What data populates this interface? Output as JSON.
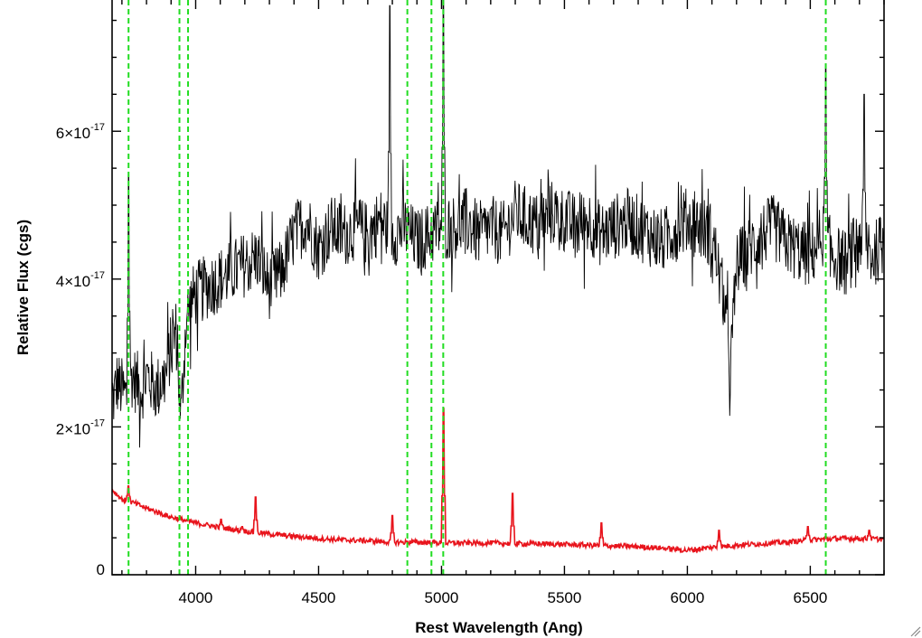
{
  "chart_data": {
    "type": "line",
    "xlabel": "Rest Wavelength (Ang)",
    "ylabel": "Relative Flux (cgs)",
    "xlim": [
      3660,
      6800
    ],
    "ylim": [
      0,
      7.8e-17
    ],
    "x_ticks": [
      {
        "value": 4000,
        "label": "4000"
      },
      {
        "value": 4500,
        "label": "4500"
      },
      {
        "value": 5000,
        "label": "5000"
      },
      {
        "value": 5500,
        "label": "5500"
      },
      {
        "value": 6000,
        "label": "6000"
      },
      {
        "value": 6500,
        "label": "6500"
      }
    ],
    "y_ticks": [
      {
        "value": 0,
        "mantissa": "0",
        "exponent": ""
      },
      {
        "value": 2e-17,
        "mantissa": "2×10",
        "exponent": "-17"
      },
      {
        "value": 4e-17,
        "mantissa": "4×10",
        "exponent": "-17"
      },
      {
        "value": 6e-17,
        "mantissa": "6×10",
        "exponent": "-17"
      }
    ],
    "grid": false,
    "colors": {
      "spectrum": "#000000",
      "model": "#e8141c",
      "lines": "#22dd22"
    },
    "reference_lines_x": [
      3727,
      3934,
      3969,
      4861,
      4959,
      5007,
      6563
    ],
    "series": [
      {
        "color": "#000000",
        "x": [
          3660,
          3680,
          3700,
          3720,
          3740,
          3760,
          3780,
          3800,
          3820,
          3840,
          3860,
          3880,
          3900,
          3920,
          3940,
          3960,
          3980,
          4000,
          4050,
          4100,
          4150,
          4200,
          4250,
          4300,
          4350,
          4400,
          4450,
          4500,
          4550,
          4600,
          4650,
          4700,
          4750,
          4800,
          4850,
          4900,
          4950,
          5000,
          5050,
          5100,
          5150,
          5200,
          5250,
          5300,
          5350,
          5400,
          5450,
          5500,
          5550,
          5600,
          5650,
          5700,
          5750,
          5800,
          5850,
          5900,
          5950,
          6000,
          6050,
          6100,
          6150,
          6175,
          6200,
          6250,
          6300,
          6350,
          6400,
          6450,
          6500,
          6550,
          6600,
          6650,
          6700,
          6750,
          6800
        ],
        "y": [
          2.3e-17,
          2.6e-17,
          2.5e-17,
          2.4e-17,
          2.7e-17,
          2.6e-17,
          2.5e-17,
          2.7e-17,
          2.6e-17,
          2.5e-17,
          2.6e-17,
          2.7e-17,
          3.1e-17,
          3.3e-17,
          2.1e-17,
          3.4e-17,
          3.7e-17,
          3.8e-17,
          3.9e-17,
          4e-17,
          4.1e-17,
          4.2e-17,
          4.3e-17,
          3.9e-17,
          4.1e-17,
          4.6e-17,
          4.8e-17,
          4.4e-17,
          4.7e-17,
          4.6e-17,
          4.7e-17,
          4.6e-17,
          4.8e-17,
          4.6e-17,
          4.7e-17,
          4.5e-17,
          4.6e-17,
          4.7e-17,
          4.7e-17,
          4.8e-17,
          4.6e-17,
          4.7e-17,
          4.6e-17,
          4.9e-17,
          4.8e-17,
          4.7e-17,
          4.9e-17,
          4.8e-17,
          4.7e-17,
          4.8e-17,
          4.6e-17,
          4.7e-17,
          4.8e-17,
          4.7e-17,
          4.6e-17,
          4.5e-17,
          4.7e-17,
          4.8e-17,
          4.7e-17,
          4.6e-17,
          3.7e-17,
          2.8e-17,
          4.2e-17,
          4.4e-17,
          4.6e-17,
          4.7e-17,
          4.5e-17,
          4.4e-17,
          4.3e-17,
          4.6e-17,
          4.3e-17,
          4.2e-17,
          4.6e-17,
          4.3e-17,
          4.5e-17
        ]
      },
      {
        "color": "#e8141c",
        "x": [
          3660,
          3700,
          3750,
          3800,
          3850,
          3900,
          3950,
          4000,
          4100,
          4200,
          4300,
          4400,
          4500,
          4600,
          4700,
          4800,
          4900,
          5000,
          5100,
          5200,
          5300,
          5400,
          5500,
          5600,
          5700,
          5800,
          5900,
          6000,
          6100,
          6200,
          6300,
          6400,
          6500,
          6600,
          6700,
          6800
        ],
        "y": [
          1.15e-17,
          1.02e-17,
          9.7e-18,
          9e-18,
          8.4e-18,
          7.8e-18,
          7.4e-18,
          7e-18,
          6.4e-18,
          5.9e-18,
          5.5e-18,
          5.2e-18,
          4.9e-18,
          4.7e-18,
          4.6e-18,
          4.4e-18,
          4.4e-18,
          4.3e-18,
          4.3e-18,
          4.3e-18,
          4.2e-18,
          4.2e-18,
          4.1e-18,
          4e-18,
          3.9e-18,
          3.8e-18,
          3.6e-18,
          3.3e-18,
          3.7e-18,
          4e-18,
          4.2e-18,
          4.4e-18,
          4.7e-18,
          4.9e-18,
          4.9e-18,
          4.8e-18
        ]
      }
    ],
    "emission_peaks": [
      {
        "series": 1,
        "x": 3727,
        "y": 1.2e-17
      },
      {
        "series": 1,
        "x": 4102,
        "y": 7.5e-18
      },
      {
        "series": 1,
        "x": 4190,
        "y": 6.5e-18
      },
      {
        "series": 1,
        "x": 4243,
        "y": 1.05e-17
      },
      {
        "series": 1,
        "x": 4800,
        "y": 8e-18
      },
      {
        "series": 1,
        "x": 5007,
        "y": 2.25e-17
      },
      {
        "series": 1,
        "x": 5290,
        "y": 1.1e-17
      },
      {
        "series": 1,
        "x": 5650,
        "y": 7e-18
      },
      {
        "series": 1,
        "x": 6130,
        "y": 6e-18
      },
      {
        "series": 1,
        "x": 6490,
        "y": 6.5e-18
      },
      {
        "series": 1,
        "x": 6740,
        "y": 6e-18
      },
      {
        "series": 0,
        "x": 3727,
        "y": 5.4e-17
      },
      {
        "series": 0,
        "x": 4790,
        "y": 7.7e-17
      },
      {
        "series": 0,
        "x": 5007,
        "y": 7.8e-17
      },
      {
        "series": 0,
        "x": 6563,
        "y": 6.9e-17
      },
      {
        "series": 0,
        "x": 6720,
        "y": 6.5e-17
      }
    ]
  }
}
